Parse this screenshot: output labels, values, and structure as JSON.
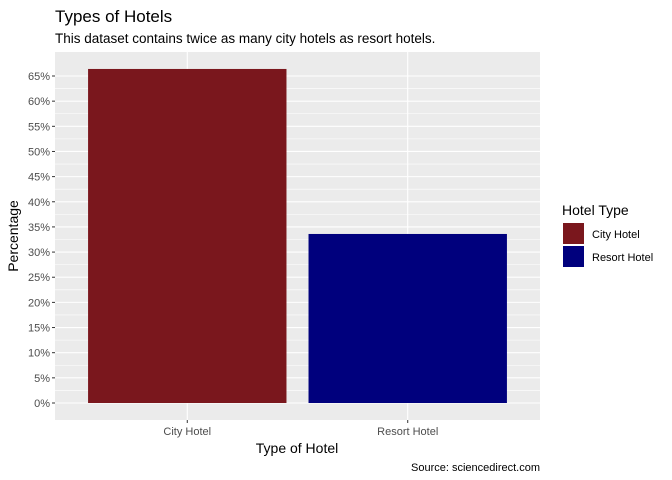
{
  "chart_data": {
    "type": "bar",
    "title": "Types of Hotels",
    "subtitle": "This dataset contains twice as many city hotels as resort hotels.",
    "xlabel": "Type of Hotel",
    "ylabel": "Percentage",
    "caption": "Source: sciencedirect.com",
    "categories": [
      "City Hotel",
      "Resort Hotel"
    ],
    "values": [
      66.4,
      33.6
    ],
    "colors": [
      "#7a171d",
      "#00007d"
    ],
    "ylim": [
      0,
      67
    ],
    "yticks": [
      0,
      5,
      10,
      15,
      20,
      25,
      30,
      35,
      40,
      45,
      50,
      55,
      60,
      65
    ],
    "ytick_suffix": "%",
    "grid": true,
    "panel_background": "#ebebeb",
    "legend": {
      "title": "Hotel Type",
      "position": "right",
      "entries": [
        {
          "label": "City Hotel",
          "color": "#7a171d"
        },
        {
          "label": "Resort Hotel",
          "color": "#00007d"
        }
      ]
    }
  }
}
